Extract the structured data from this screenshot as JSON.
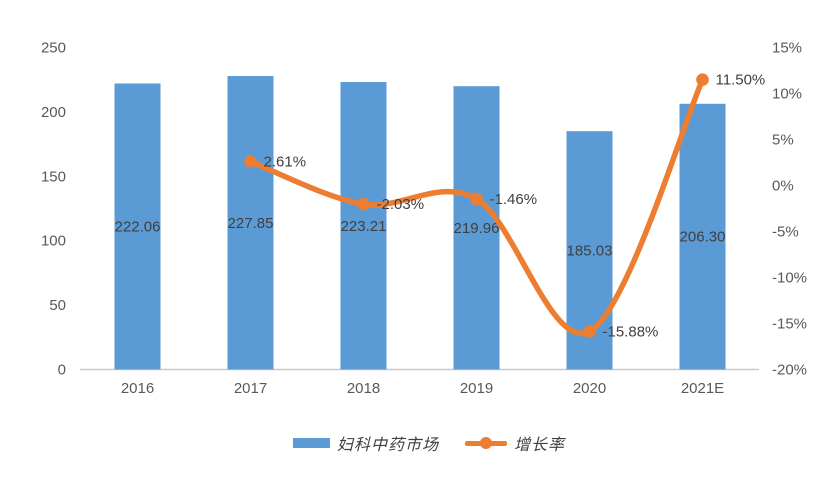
{
  "colors": {
    "bar": "#5B9BD5",
    "line": "#ED7D31",
    "axis_text": "#595959",
    "data_label": "#3f3f3f",
    "axis_line": "#C9C9C9",
    "background": "#ffffff"
  },
  "legend": {
    "market": {
      "label": "妇科中药市场",
      "color": "#5B9BD5"
    },
    "growth": {
      "label": "增长率",
      "color": "#ED7D31"
    }
  },
  "chart_data": {
    "type": "bar",
    "combo": "bar+line",
    "title": "",
    "categories": [
      "2016",
      "2017",
      "2018",
      "2019",
      "2020",
      "2021E"
    ],
    "series": [
      {
        "name": "妇科中药市场",
        "type": "bar",
        "axis": "left",
        "color": "#5B9BD5",
        "values": [
          222.06,
          227.85,
          223.21,
          219.96,
          185.03,
          206.3
        ],
        "data_labels": [
          "222.06",
          "227.85",
          "223.21",
          "219.96",
          "185.03",
          "206.30"
        ]
      },
      {
        "name": "增长率",
        "type": "line",
        "axis": "right",
        "color": "#ED7D31",
        "smooth": true,
        "values": [
          null,
          2.61,
          -2.03,
          -1.46,
          -15.88,
          11.5
        ],
        "data_labels": [
          null,
          "2.61%",
          "-2.03%",
          "-1.46%",
          "-15.88%",
          "11.50%"
        ]
      }
    ],
    "left_axis": {
      "min": 0,
      "max": 250,
      "step": 50,
      "tick_labels": [
        "0",
        "50",
        "100",
        "150",
        "200",
        "250"
      ]
    },
    "right_axis": {
      "min": -20,
      "max": 15,
      "step": 5,
      "tick_labels": [
        "-20%",
        "-15%",
        "-10%",
        "-5%",
        "0%",
        "5%",
        "10%",
        "15%"
      ]
    },
    "grid": false,
    "legend_position": "bottom"
  }
}
